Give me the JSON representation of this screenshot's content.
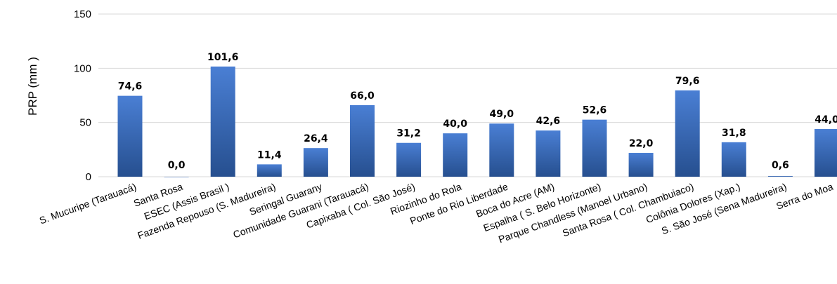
{
  "chart_data": {
    "type": "bar",
    "ylabel": "PRP (mm )",
    "xlabel": "",
    "ylim": [
      0,
      150
    ],
    "yticks": [
      0,
      50,
      100,
      150
    ],
    "grid": "horizontal",
    "categories": [
      "S. Mucuripe (Tarauacá)",
      "Santa Rosa",
      "ESEC (Assis Brasil )",
      "Fazenda Repouso (S. Madureira)",
      "Seringal Guarany",
      "Comunidade Guarani (Tarauacá)",
      "Capixaba ( Col. São José)",
      "Riozinho do Rola",
      "Ponte do Rio Liberdade",
      "Boca do Acre (AM)",
      "Espalha ( S. Belo Horizonte)",
      "Parque Chandless (Manoel Urbano)",
      "Santa Rosa ( Col. Chambuiaco)",
      "Colônia Dolores (Xap.)",
      "S. São José (Sena Madureira)",
      "Serra do Moa"
    ],
    "values": [
      74.6,
      0.0,
      101.6,
      11.4,
      26.4,
      66.0,
      31.2,
      40.0,
      49.0,
      42.6,
      52.6,
      22.0,
      79.6,
      31.8,
      0.6,
      44.0
    ],
    "data_labels": [
      "74,6",
      "0,0",
      "101,6",
      "11,4",
      "26,4",
      "66,0",
      "31,2",
      "40,0",
      "49,0",
      "42,6",
      "52,6",
      "22,0",
      "79,6",
      "31,8",
      "0,6",
      "44,0"
    ],
    "bar_color_top": "#4a7fd4",
    "bar_color_bottom": "#264f8f",
    "grid_color": "#d9d9d9"
  }
}
